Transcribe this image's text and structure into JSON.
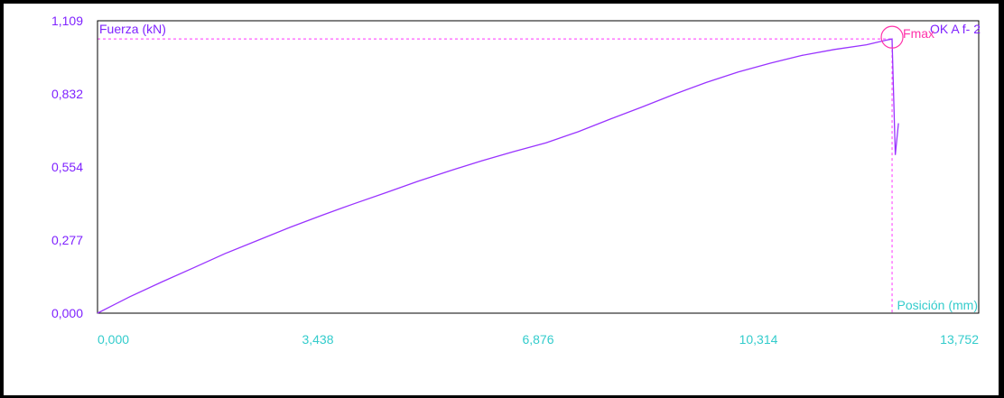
{
  "chart_data": {
    "type": "line",
    "title": "",
    "ylabel": "Fuerza (kN)",
    "xlabel": "Posición (mm)",
    "xlim": [
      0,
      13.752
    ],
    "ylim": [
      0,
      1.109
    ],
    "x_ticks": [
      "0,000",
      "3,438",
      "6,876",
      "10,314",
      "13,752"
    ],
    "y_ticks": [
      "0,000",
      "0,277",
      "0,554",
      "0,832",
      "1,109"
    ],
    "series": [
      {
        "name": "OK A f- 2",
        "color": "#9933ff",
        "x": [
          0,
          0.5,
          1.0,
          1.5,
          2.0,
          2.5,
          3.0,
          3.5,
          4.0,
          4.5,
          5.0,
          5.5,
          6.0,
          6.5,
          7.0,
          7.5,
          8.0,
          8.5,
          9.0,
          9.5,
          10.0,
          10.5,
          11.0,
          11.5,
          12.0,
          12.3,
          12.4,
          12.45,
          12.5
        ],
        "y": [
          0,
          0.062,
          0.118,
          0.172,
          0.227,
          0.276,
          0.325,
          0.371,
          0.415,
          0.457,
          0.5,
          0.54,
          0.578,
          0.613,
          0.646,
          0.688,
          0.736,
          0.782,
          0.83,
          0.875,
          0.915,
          0.948,
          0.978,
          1.0,
          1.018,
          1.035,
          1.04,
          0.6,
          0.72
        ]
      }
    ],
    "annotations": {
      "fmax_label": "Fmax",
      "fmax": {
        "x": 12.4,
        "y": 1.04
      },
      "marker_color": "#ff33aa"
    },
    "legend_position": "top-right",
    "grid": false
  },
  "colors": {
    "axis": "#000000",
    "y_tick_color": "#7f22ff",
    "x_tick_color": "#33cccc",
    "ylabel_color": "#7f22ff",
    "xlabel_color": "#33cccc",
    "legend_color": "#7f22ff",
    "guide_color": "#ff33ff"
  }
}
